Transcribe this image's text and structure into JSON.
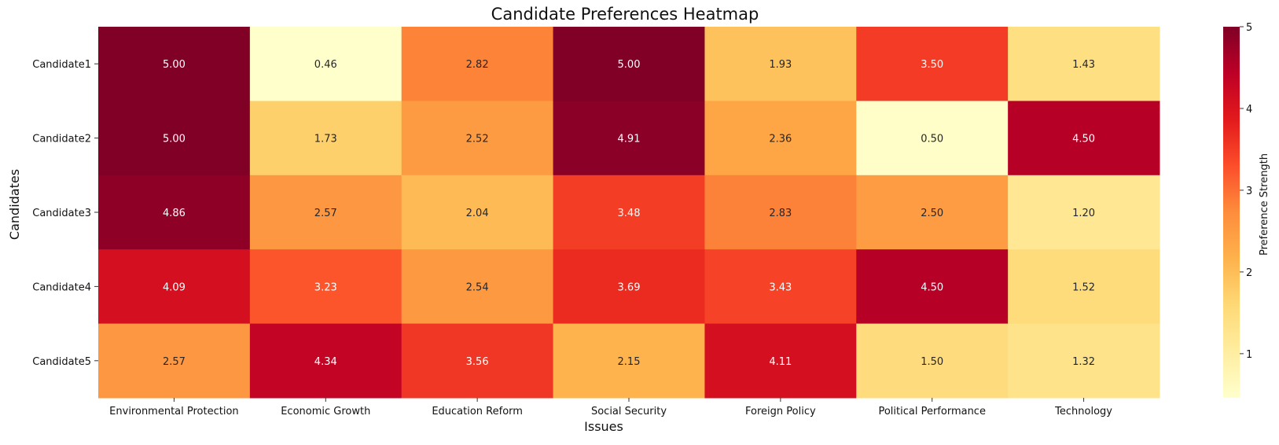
{
  "chart_data": {
    "type": "heatmap",
    "title": "Candidate Preferences Heatmap",
    "xlabel": "Issues",
    "ylabel": "Candidates",
    "x_categories": [
      "Environmental Protection",
      "Economic Growth",
      "Education Reform",
      "Social Security",
      "Foreign Policy",
      "Political Performance",
      "Technology"
    ],
    "y_categories": [
      "Candidate1",
      "Candidate2",
      "Candidate3",
      "Candidate4",
      "Candidate5"
    ],
    "values": [
      [
        5.0,
        0.46,
        2.82,
        5.0,
        1.93,
        3.5,
        1.43
      ],
      [
        5.0,
        1.73,
        2.52,
        4.91,
        2.36,
        0.5,
        4.5
      ],
      [
        4.86,
        2.57,
        2.04,
        3.48,
        2.83,
        2.5,
        1.2
      ],
      [
        4.09,
        3.23,
        2.54,
        3.69,
        3.43,
        4.5,
        1.52
      ],
      [
        2.57,
        4.34,
        3.56,
        2.15,
        4.11,
        1.5,
        1.32
      ]
    ],
    "value_format_decimals": 2,
    "colorbar": {
      "label": "Preference Strength",
      "min": 0.46,
      "max": 5,
      "ticks": [
        1,
        2,
        3,
        4,
        5
      ],
      "colormap": "YlOrRd"
    },
    "grid": false,
    "annotations": "cell values shown"
  }
}
